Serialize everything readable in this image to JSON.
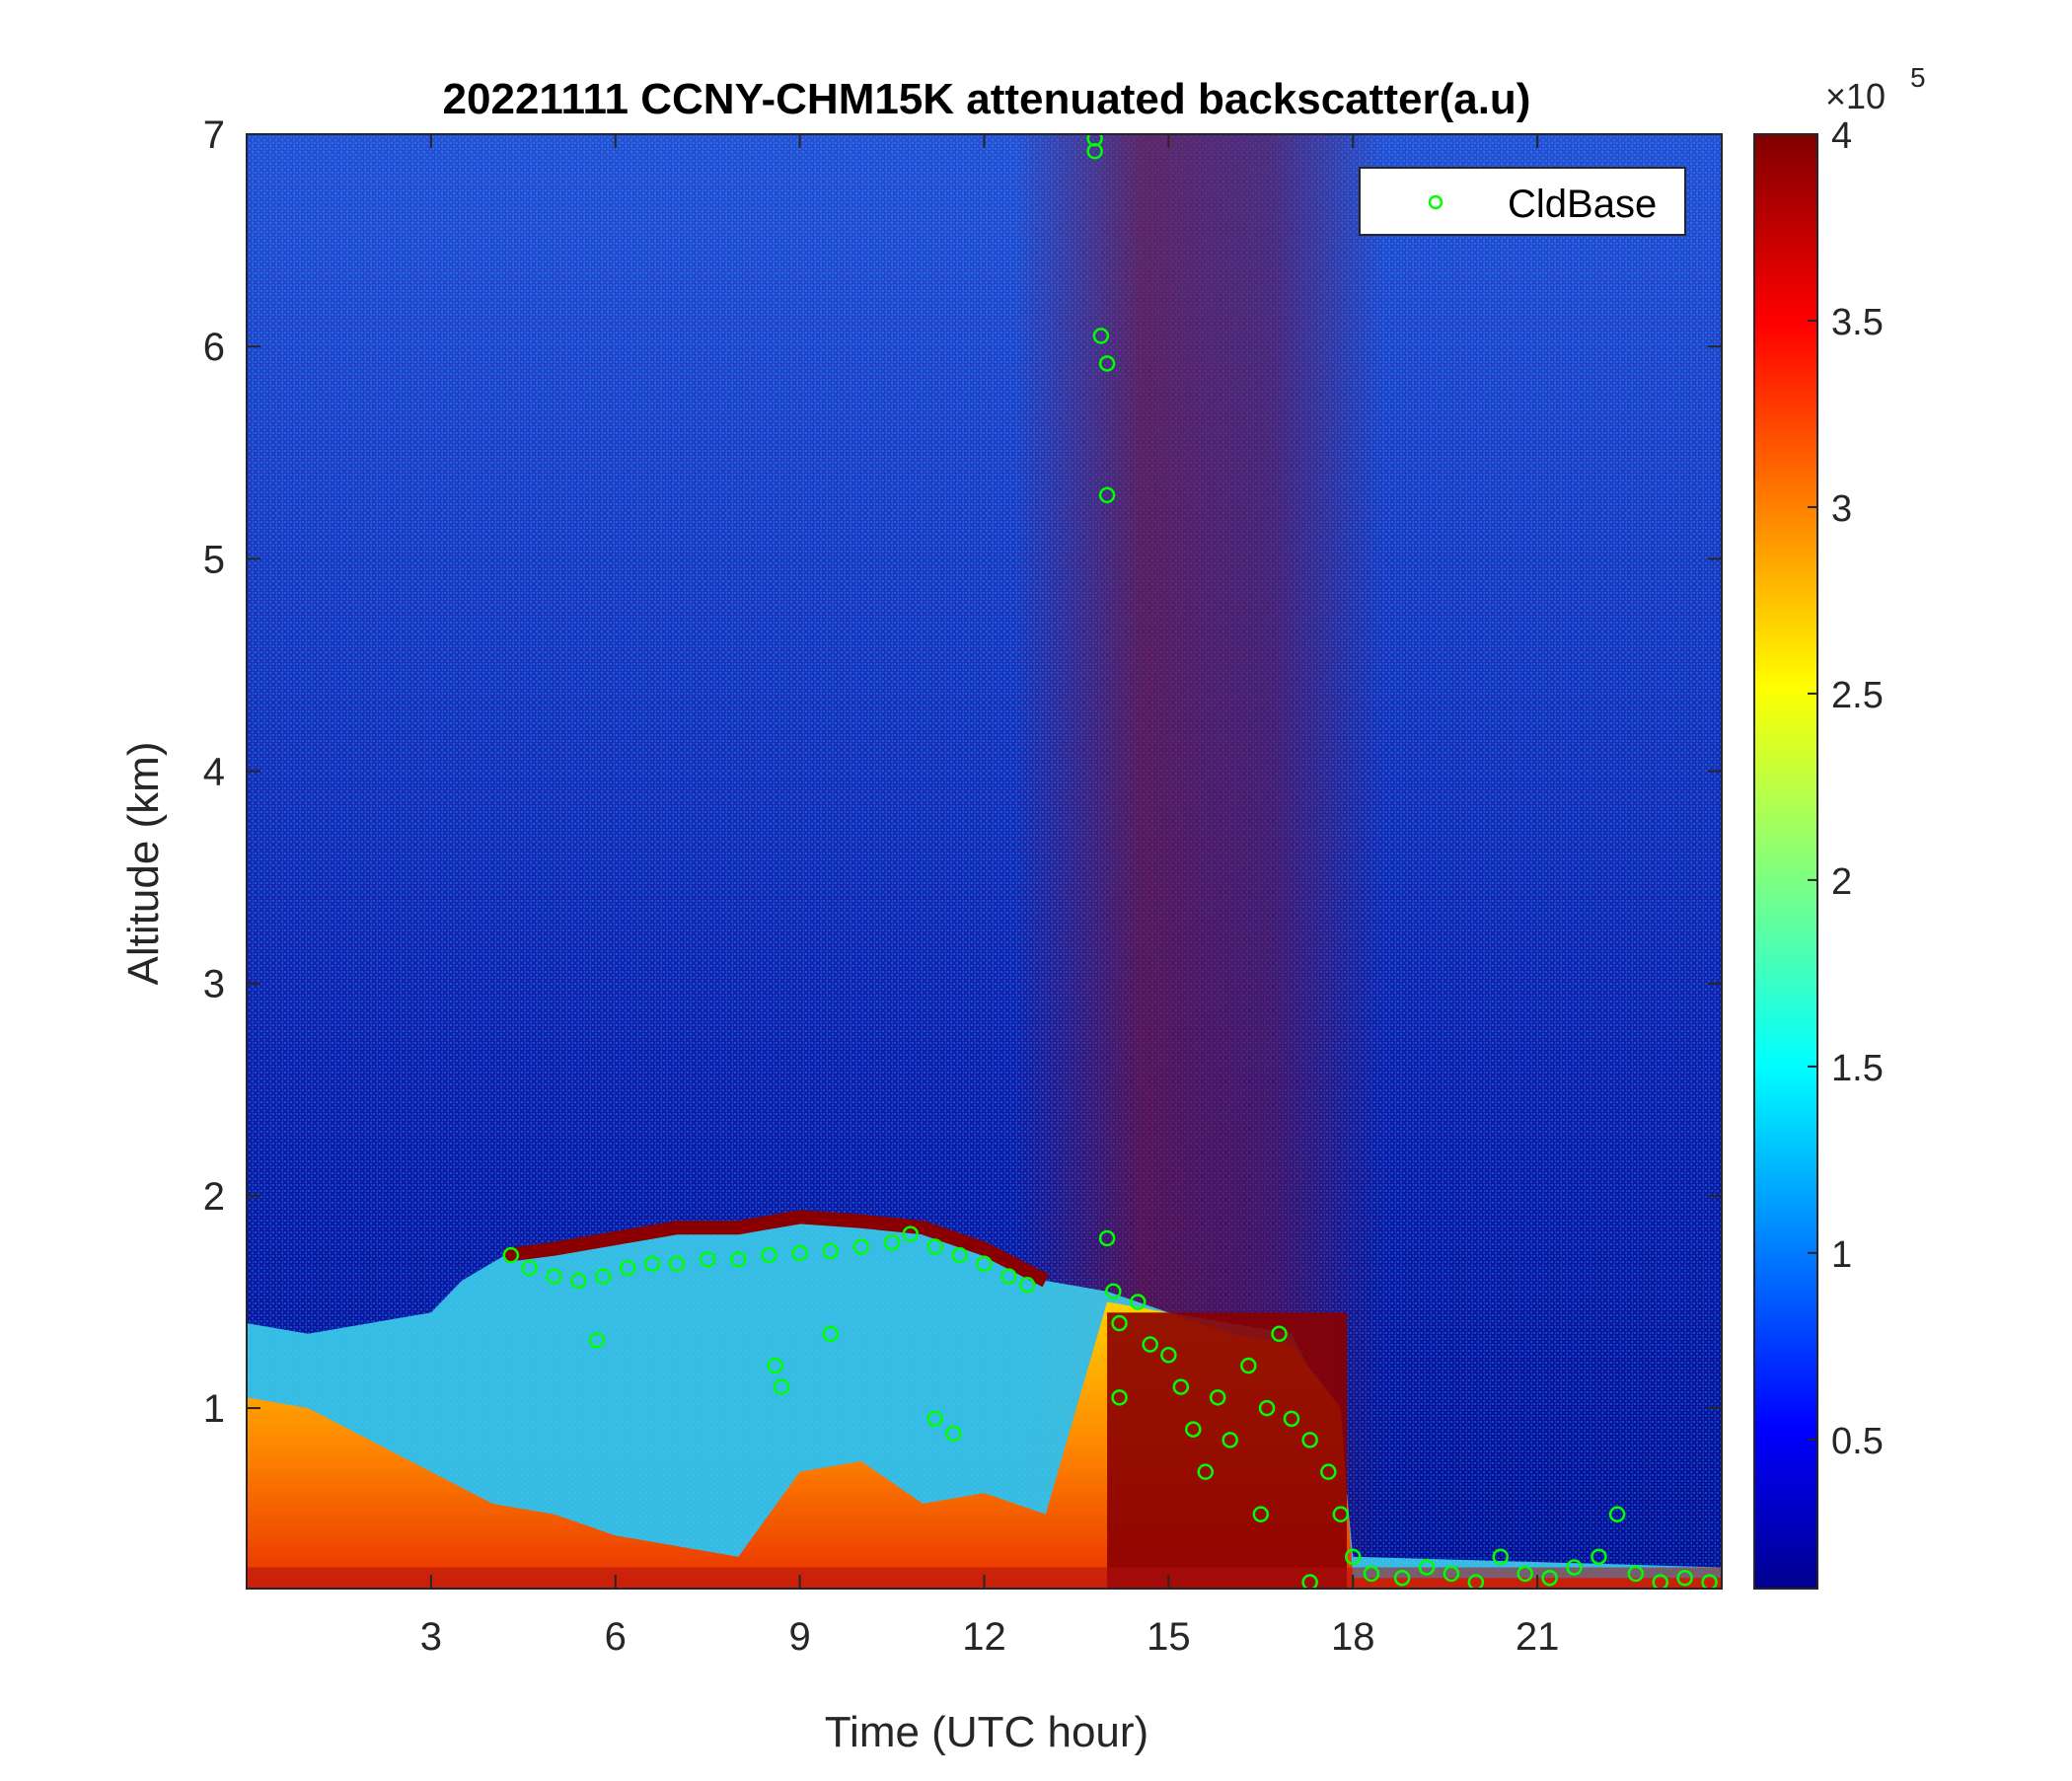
{
  "chart_data": {
    "type": "heatmap",
    "title": "20221111 CCNY-CHM15K attenuated backscatter(a.u)",
    "xlabel": "Time (UTC hour)",
    "ylabel": "Altitude (km)",
    "xlim": [
      0,
      24
    ],
    "ylim": [
      0.15,
      7
    ],
    "x_ticks": [
      3,
      6,
      9,
      12,
      15,
      18,
      21
    ],
    "y_ticks": [
      1,
      2,
      3,
      4,
      5,
      6,
      7
    ],
    "colormap": "jet",
    "colorbar": {
      "range": [
        0.1,
        4
      ],
      "ticks": [
        0.5,
        1,
        1.5,
        2,
        2.5,
        3,
        3.5,
        4
      ],
      "tick_labels": [
        "0.5",
        "1",
        "1.5",
        "2",
        "2.5",
        "3",
        "3.5",
        "4"
      ],
      "multiplier_base": "×10",
      "multiplier_exponent": "5"
    },
    "legend": {
      "placement": "top-right",
      "entries": [
        {
          "name": "CldBase",
          "marker": "open-circle",
          "color": "#00ff00"
        }
      ]
    },
    "layers": {
      "boundary_layer_top_km": [
        [
          0,
          1.4
        ],
        [
          1,
          1.35
        ],
        [
          2,
          1.4
        ],
        [
          3,
          1.45
        ],
        [
          3.5,
          1.6
        ],
        [
          4.2,
          1.72
        ],
        [
          5,
          1.75
        ],
        [
          6,
          1.8
        ],
        [
          7,
          1.85
        ],
        [
          8,
          1.85
        ],
        [
          9,
          1.9
        ],
        [
          10,
          1.88
        ],
        [
          11,
          1.85
        ],
        [
          12,
          1.75
        ],
        [
          13,
          1.6
        ],
        [
          14,
          1.55
        ],
        [
          15,
          1.45
        ],
        [
          16,
          1.4
        ],
        [
          17,
          1.35
        ],
        [
          17.8,
          0.9
        ],
        [
          18,
          0.3
        ],
        [
          24,
          0.25
        ]
      ],
      "aerosol_high_top_km": [
        [
          0,
          1.05
        ],
        [
          1,
          1.0
        ],
        [
          2,
          0.85
        ],
        [
          3,
          0.7
        ],
        [
          4,
          0.55
        ],
        [
          5,
          0.5
        ],
        [
          6,
          0.4
        ],
        [
          7,
          0.35
        ],
        [
          8,
          0.3
        ],
        [
          9,
          0.7
        ],
        [
          10,
          0.75
        ],
        [
          11,
          0.55
        ],
        [
          12,
          0.6
        ],
        [
          13,
          0.5
        ],
        [
          14,
          1.5
        ],
        [
          15,
          1.45
        ],
        [
          16,
          1.35
        ],
        [
          17,
          1.3
        ],
        [
          17.8,
          1.0
        ],
        [
          18,
          0.2
        ],
        [
          24,
          0.2
        ]
      ],
      "elevated_noise_region_hours": [
        12.5,
        18.5
      ]
    },
    "series": [
      {
        "name": "CldBase",
        "points": [
          [
            4.3,
            1.72
          ],
          [
            4.6,
            1.66
          ],
          [
            5.0,
            1.62
          ],
          [
            5.4,
            1.6
          ],
          [
            5.8,
            1.62
          ],
          [
            6.2,
            1.66
          ],
          [
            6.6,
            1.68
          ],
          [
            7.0,
            1.68
          ],
          [
            7.5,
            1.7
          ],
          [
            8.0,
            1.7
          ],
          [
            8.5,
            1.72
          ],
          [
            9.0,
            1.73
          ],
          [
            9.5,
            1.74
          ],
          [
            10.0,
            1.76
          ],
          [
            10.5,
            1.78
          ],
          [
            10.8,
            1.82
          ],
          [
            11.2,
            1.76
          ],
          [
            11.6,
            1.72
          ],
          [
            12.0,
            1.68
          ],
          [
            12.4,
            1.62
          ],
          [
            12.7,
            1.58
          ],
          [
            5.7,
            1.32
          ],
          [
            8.6,
            1.2
          ],
          [
            8.7,
            1.1
          ],
          [
            9.5,
            1.35
          ],
          [
            11.2,
            0.95
          ],
          [
            11.5,
            0.88
          ],
          [
            13.8,
            6.98
          ],
          [
            13.8,
            6.92
          ],
          [
            13.9,
            6.05
          ],
          [
            14.0,
            5.92
          ],
          [
            14.0,
            5.3
          ],
          [
            14.0,
            1.8
          ],
          [
            14.1,
            1.55
          ],
          [
            14.2,
            1.4
          ],
          [
            14.2,
            1.05
          ],
          [
            14.5,
            1.5
          ],
          [
            14.7,
            1.3
          ],
          [
            15.0,
            1.25
          ],
          [
            15.2,
            1.1
          ],
          [
            15.4,
            0.9
          ],
          [
            15.6,
            0.7
          ],
          [
            15.8,
            1.05
          ],
          [
            16.0,
            0.85
          ],
          [
            16.3,
            1.2
          ],
          [
            16.6,
            1.0
          ],
          [
            16.8,
            1.35
          ],
          [
            17.0,
            0.95
          ],
          [
            17.3,
            0.85
          ],
          [
            17.6,
            0.7
          ],
          [
            17.8,
            0.5
          ],
          [
            18.0,
            0.3
          ],
          [
            16.5,
            0.5
          ],
          [
            17.3,
            0.18
          ],
          [
            18.3,
            0.22
          ],
          [
            18.8,
            0.2
          ],
          [
            19.2,
            0.25
          ],
          [
            19.6,
            0.22
          ],
          [
            20.0,
            0.18
          ],
          [
            20.4,
            0.3
          ],
          [
            20.8,
            0.22
          ],
          [
            21.2,
            0.2
          ],
          [
            21.6,
            0.25
          ],
          [
            22.0,
            0.3
          ],
          [
            22.3,
            0.5
          ],
          [
            22.6,
            0.22
          ],
          [
            23.0,
            0.18
          ],
          [
            23.4,
            0.2
          ],
          [
            23.8,
            0.18
          ]
        ]
      }
    ]
  }
}
